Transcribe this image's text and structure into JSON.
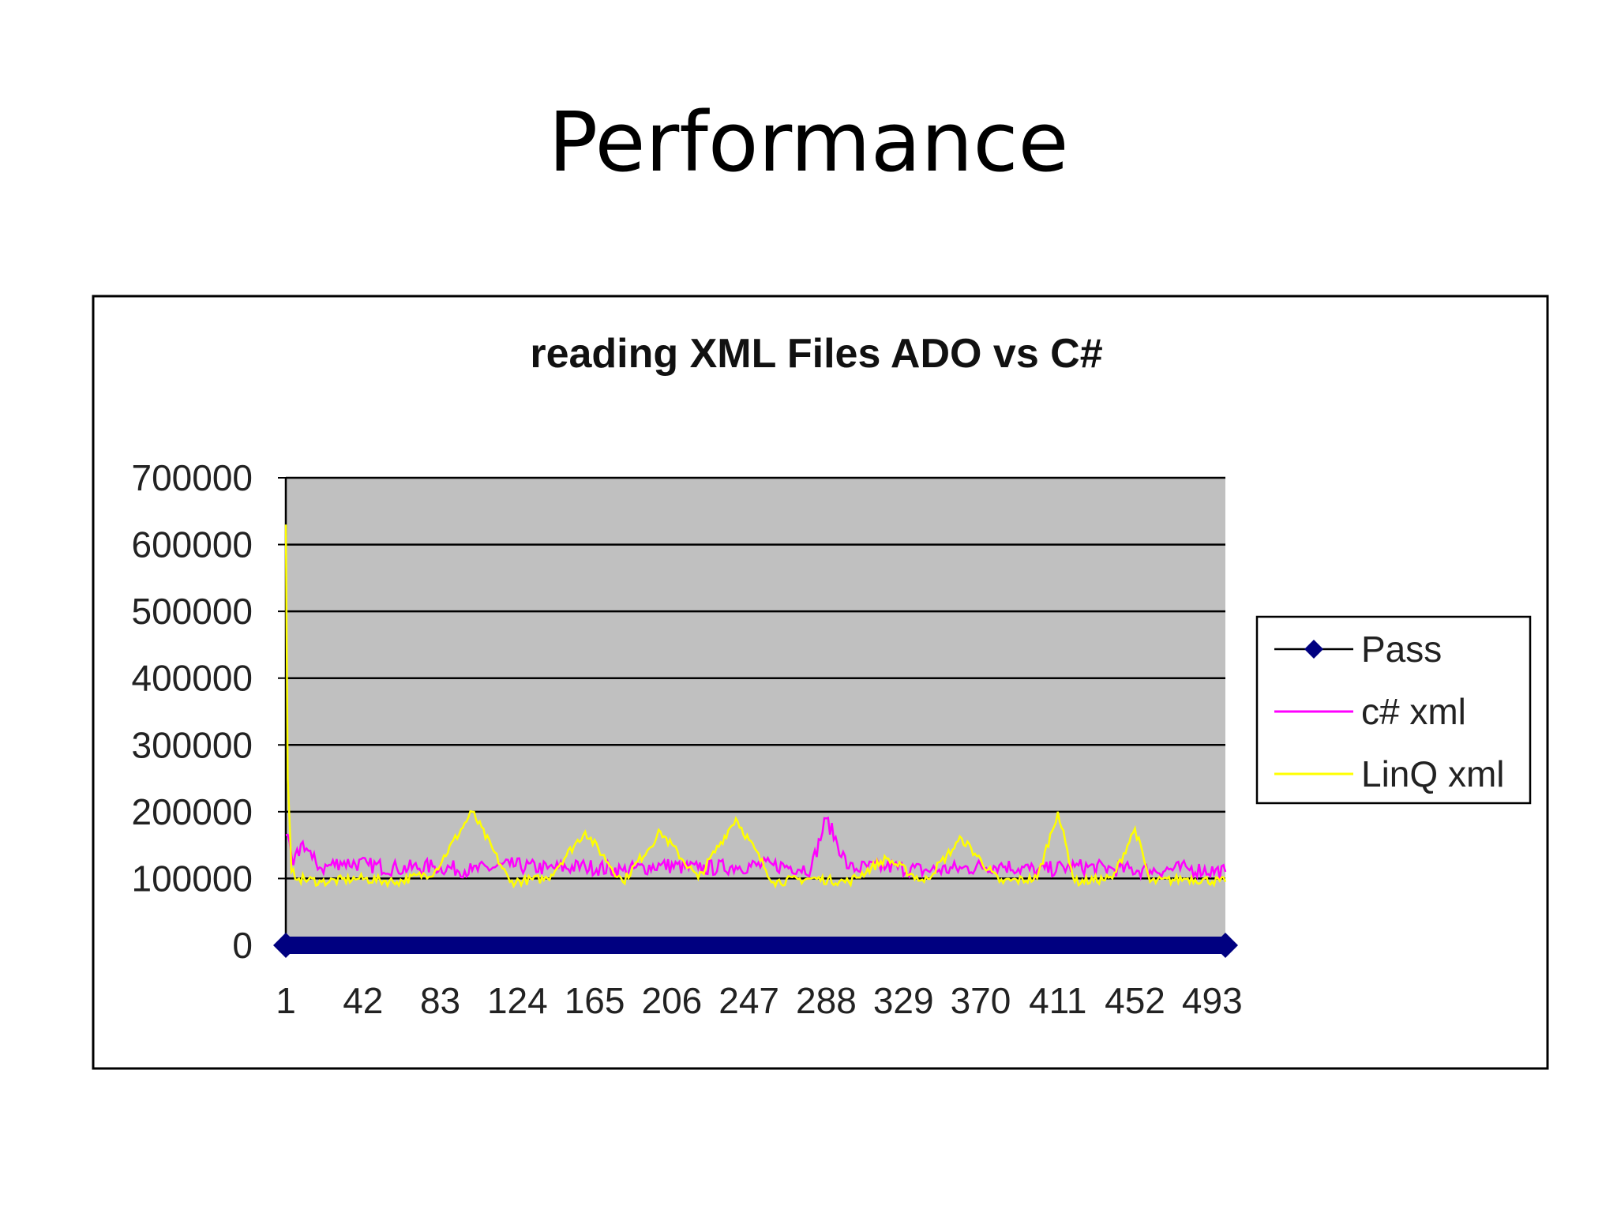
{
  "slide": {
    "title": "Performance"
  },
  "chart_data": {
    "type": "line",
    "title": "reading XML Files ADO vs C#",
    "xlabel": "",
    "ylabel": "",
    "ylim": [
      0,
      700000
    ],
    "yticks": [
      "0",
      "100000",
      "200000",
      "300000",
      "400000",
      "500000",
      "600000",
      "700000"
    ],
    "xlim": [
      1,
      500
    ],
    "xticks": [
      "1",
      "42",
      "83",
      "124",
      "165",
      "206",
      "247",
      "288",
      "329",
      "370",
      "411",
      "452",
      "493"
    ],
    "grid": "horizontal",
    "plot_background": "#c0c0c0",
    "legend_position": "right",
    "series": [
      {
        "name": "Pass",
        "color": "#000080",
        "marker": "diamond",
        "x": [
          1,
          500
        ],
        "values": [
          0,
          0
        ],
        "note_values": "constant 0 across all 500 points"
      },
      {
        "name": "c# xml",
        "color": "#ff00ff",
        "x": [
          1,
          5,
          10,
          15,
          20,
          30,
          45,
          60,
          80,
          100,
          120,
          140,
          160,
          180,
          200,
          220,
          240,
          260,
          280,
          288,
          300,
          320,
          340,
          360,
          380,
          400,
          420,
          440,
          460,
          480,
          500
        ],
        "values": [
          165000,
          120000,
          155000,
          130000,
          115000,
          125000,
          120000,
          115000,
          118000,
          112000,
          120000,
          115000,
          118000,
          112000,
          120000,
          115000,
          118000,
          120000,
          115000,
          190000,
          115000,
          118000,
          112000,
          115000,
          120000,
          112000,
          118000,
          115000,
          112000,
          115000,
          110000
        ]
      },
      {
        "name": "LinQ xml",
        "color": "#ffff00",
        "x": [
          1,
          2,
          4,
          8,
          20,
          40,
          60,
          80,
          100,
          120,
          140,
          160,
          180,
          200,
          220,
          240,
          260,
          280,
          300,
          320,
          340,
          360,
          380,
          400,
          411,
          420,
          440,
          452,
          460,
          480,
          500
        ],
        "values": [
          630000,
          250000,
          110000,
          100000,
          95000,
          100000,
          95000,
          110000,
          200000,
          95000,
          100000,
          170000,
          95000,
          170000,
          100000,
          190000,
          95000,
          100000,
          95000,
          130000,
          95000,
          160000,
          95000,
          100000,
          200000,
          95000,
          100000,
          175000,
          95000,
          100000,
          95000
        ]
      }
    ]
  }
}
